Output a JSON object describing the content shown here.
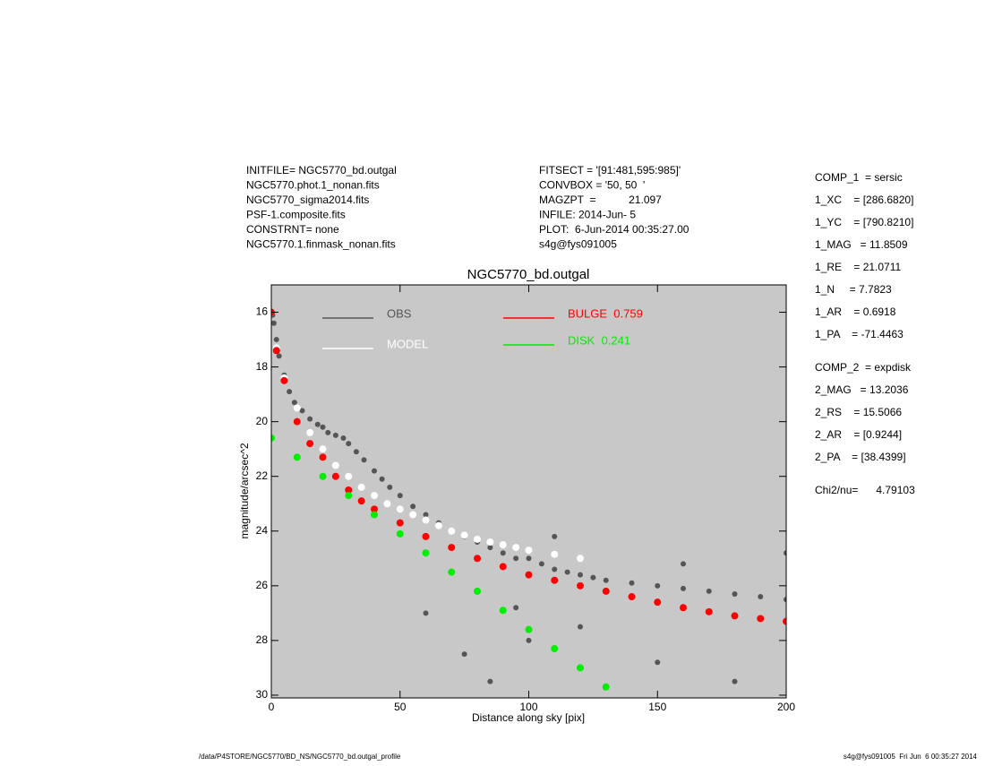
{
  "header_left": [
    "INITFILE= NGC5770_bd.outgal",
    "NGC5770.phot.1_nonan.fits",
    "NGC5770_sigma2014.fits",
    "PSF-1.composite.fits",
    "CONSTRNT= none",
    "NGC5770.1.finmask_nonan.fits"
  ],
  "header_middle": [
    "FITSECT = '[91:481,595:985]'",
    "CONVBOX = '50, 50  '",
    "MAGZPT  =           21.097",
    "INFILE: 2014-Jun- 5",
    "PLOT:  6-Jun-2014 00:35:27.00",
    "s4g@fys091005"
  ],
  "parameters": [
    "COMP_1  = sersic",
    "1_XC    = [286.6820]",
    "1_YC    = [790.8210]",
    "1_MAG   = 11.8509",
    "1_RE    = 21.0711",
    "1_N     = 7.7823",
    "1_AR    = 0.6918",
    "1_PA    = -71.4463",
    "COMP_2  = expdisk",
    "2_MAG   = 13.2036",
    "2_RS    = 15.5066",
    "2_AR    = [0.9244]",
    "2_PA    = [38.4399]",
    "Chi2/nu=      4.79103"
  ],
  "footer_left": "/data/P4STORE/NGC5770/BD_NS/NGC5770_bd.outgal_profile",
  "footer_right": "s4g@fys091005  Fri Jun  6 00:35:27 2014",
  "chart_data": {
    "type": "scatter",
    "title": "NGC5770_bd.outgal",
    "x_label": "Distance along sky [pix]",
    "y_label": "magnitude/arcsec^2",
    "xlim": [
      0,
      200
    ],
    "ylim": [
      30.1,
      15
    ],
    "xticks": [
      0,
      50,
      100,
      150,
      200
    ],
    "yticks": [
      16,
      18,
      20,
      22,
      24,
      26,
      28,
      30
    ],
    "background": "#c8c8c8",
    "series": [
      {
        "name": "OBS",
        "color": "#555555",
        "x": [
          0.5,
          1,
          2,
          3,
          5,
          7,
          9,
          12,
          15,
          18,
          20,
          22,
          25,
          28,
          30,
          33,
          36,
          40,
          43,
          46,
          50,
          55,
          60,
          65,
          70,
          75,
          80,
          85,
          90,
          95,
          100,
          105,
          110,
          115,
          120,
          125,
          130,
          140,
          150,
          160,
          170,
          180,
          190,
          200,
          60,
          75,
          85,
          100,
          120,
          150,
          180,
          95,
          110,
          160,
          200
        ],
        "values": [
          16.1,
          16.4,
          17.0,
          17.6,
          18.3,
          18.9,
          19.3,
          19.6,
          19.9,
          20.1,
          20.2,
          20.4,
          20.5,
          20.6,
          20.8,
          21.1,
          21.4,
          21.8,
          22.1,
          22.4,
          22.7,
          23.1,
          23.4,
          23.7,
          24.0,
          24.2,
          24.4,
          24.6,
          24.8,
          25.0,
          25.0,
          25.2,
          25.4,
          25.5,
          25.6,
          25.7,
          25.8,
          25.9,
          26.0,
          26.1,
          26.2,
          26.3,
          26.4,
          26.5,
          27.0,
          28.5,
          29.5,
          28.0,
          27.5,
          28.8,
          29.5,
          26.8,
          24.2,
          25.2,
          24.8
        ]
      },
      {
        "name": "MODEL",
        "color": "#ffffff",
        "x": [
          0,
          2,
          5,
          10,
          15,
          20,
          25,
          30,
          35,
          40,
          45,
          50,
          55,
          60,
          65,
          70,
          75,
          80,
          85,
          90,
          95,
          100,
          110,
          120
        ],
        "values": [
          16.0,
          17.3,
          18.4,
          19.5,
          20.4,
          21.0,
          21.6,
          22.0,
          22.4,
          22.7,
          23.0,
          23.2,
          23.4,
          23.6,
          23.8,
          24.0,
          24.15,
          24.3,
          24.4,
          24.5,
          24.6,
          24.7,
          24.85,
          25.0
        ]
      },
      {
        "name": "BULGE  0.759",
        "color": "#ff0000",
        "x": [
          0,
          2,
          5,
          10,
          15,
          20,
          25,
          30,
          35,
          40,
          50,
          60,
          70,
          80,
          90,
          100,
          110,
          120,
          130,
          140,
          150,
          160,
          170,
          180,
          190,
          200
        ],
        "values": [
          16.0,
          17.4,
          18.5,
          20.0,
          20.8,
          21.3,
          22.0,
          22.5,
          22.9,
          23.2,
          23.7,
          24.2,
          24.6,
          25.0,
          25.3,
          25.6,
          25.8,
          26.0,
          26.2,
          26.4,
          26.6,
          26.8,
          26.95,
          27.1,
          27.2,
          27.3
        ]
      },
      {
        "name": "DISK  0.241",
        "color": "#00ee00",
        "x": [
          0,
          10,
          20,
          30,
          40,
          50,
          60,
          70,
          80,
          90,
          100,
          110,
          120,
          130
        ],
        "values": [
          20.6,
          21.3,
          22.0,
          22.7,
          23.4,
          24.1,
          24.8,
          25.5,
          26.2,
          26.9,
          27.6,
          28.3,
          29.0,
          29.7
        ]
      }
    ]
  }
}
